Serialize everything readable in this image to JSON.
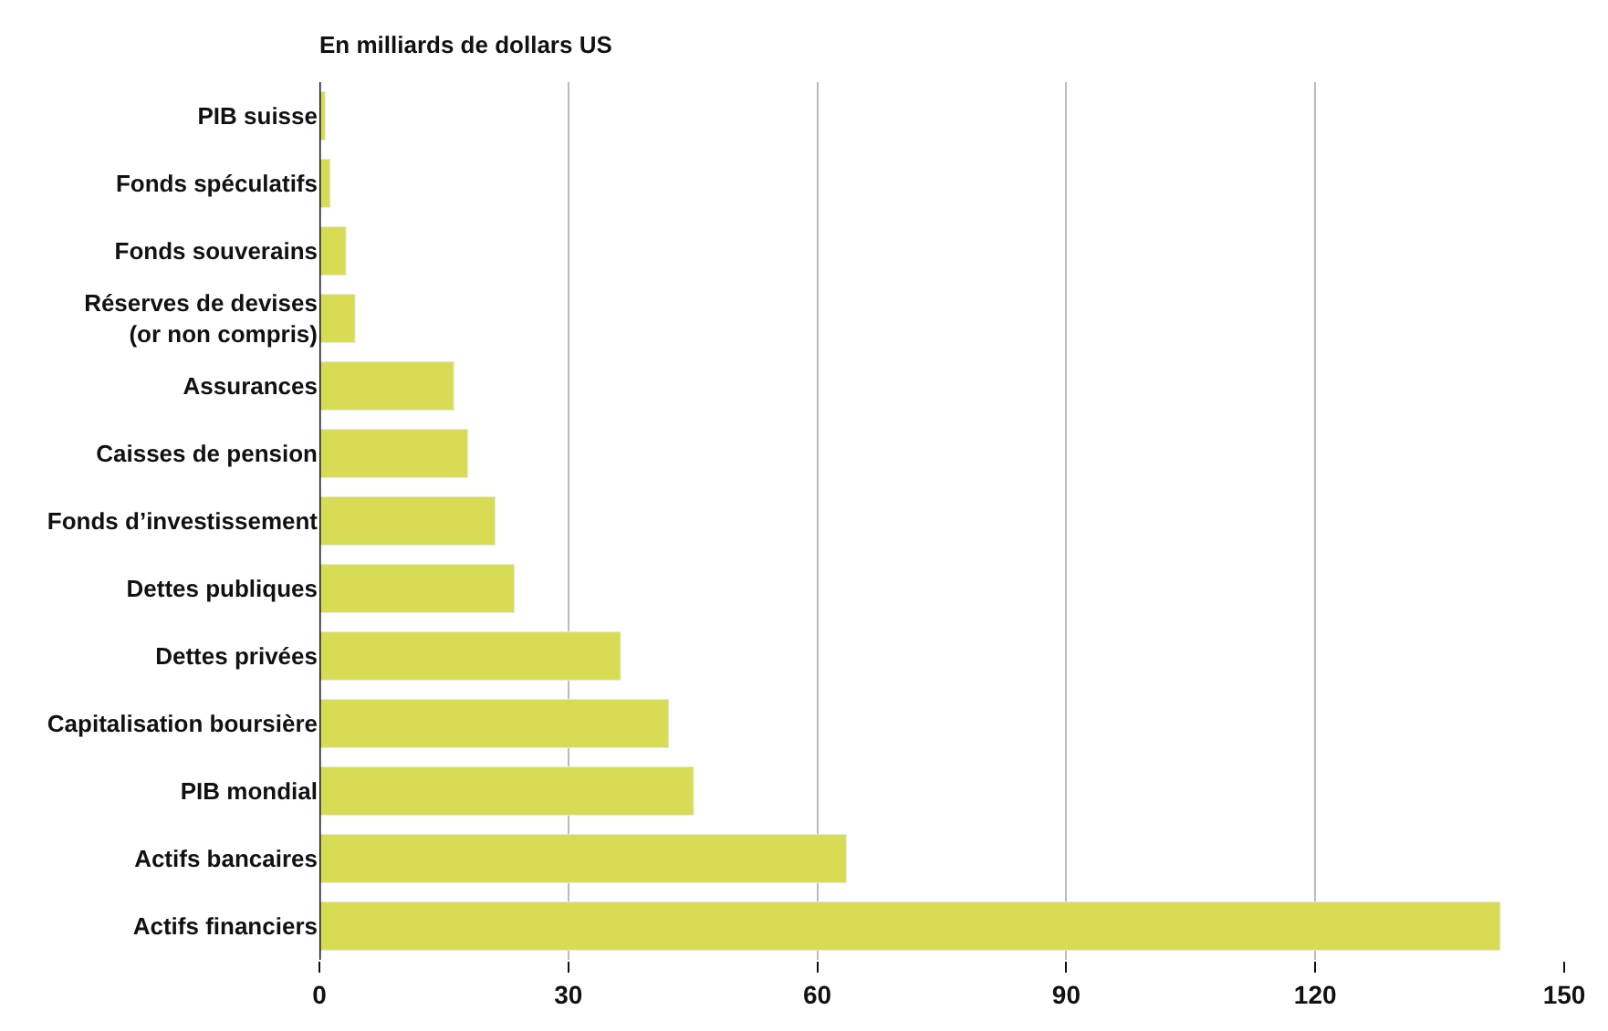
{
  "chart_data": {
    "type": "bar",
    "orientation": "horizontal",
    "title": "En milliards de dollars US",
    "categories": [
      "PIB suisse",
      "Fonds spéculatifs",
      "Fonds souverains",
      "Réserves de devises\n(or non compris)",
      "Assurances",
      "Caisses de pension",
      "Fonds d’investissement",
      "Dettes publiques",
      "Dettes privées",
      "Capitalisation boursière",
      "PIB mondial",
      "Actifs bancaires",
      "Actifs financiers"
    ],
    "values": [
      0.7,
      1.3,
      3.2,
      4.3,
      16.2,
      17.9,
      21.2,
      23.5,
      36.3,
      42.1,
      45.1,
      63.5,
      142.3
    ],
    "color": "#d8dc55",
    "xlim": [
      0,
      150
    ],
    "xticks": [
      0,
      30,
      60,
      90,
      120,
      150
    ],
    "grid": "x"
  }
}
